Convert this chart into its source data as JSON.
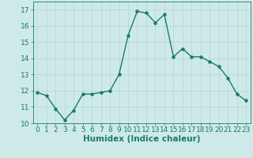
{
  "x": [
    0,
    1,
    2,
    3,
    4,
    5,
    6,
    7,
    8,
    9,
    10,
    11,
    12,
    13,
    14,
    15,
    16,
    17,
    18,
    19,
    20,
    21,
    22,
    23
  ],
  "y": [
    11.9,
    11.7,
    10.9,
    10.2,
    10.8,
    11.8,
    11.8,
    11.9,
    12.0,
    13.0,
    15.4,
    16.9,
    16.8,
    16.2,
    16.7,
    14.1,
    14.6,
    14.1,
    14.1,
    13.8,
    13.5,
    12.8,
    11.8,
    11.4
  ],
  "line_color": "#1a7a6e",
  "marker_color": "#1a7a6e",
  "bg_color": "#ceeae8",
  "grid_color": "#b8d8d5",
  "xlabel": "Humidex (Indice chaleur)",
  "ylim": [
    10,
    17.5
  ],
  "xlim": [
    -0.5,
    23.5
  ],
  "yticks": [
    10,
    11,
    12,
    13,
    14,
    15,
    16,
    17
  ],
  "xticks": [
    0,
    1,
    2,
    3,
    4,
    5,
    6,
    7,
    8,
    9,
    10,
    11,
    12,
    13,
    14,
    15,
    16,
    17,
    18,
    19,
    20,
    21,
    22,
    23
  ],
  "font_size": 6.5,
  "xlabel_font_size": 7.5,
  "marker_size": 2.2,
  "line_width": 1.0
}
